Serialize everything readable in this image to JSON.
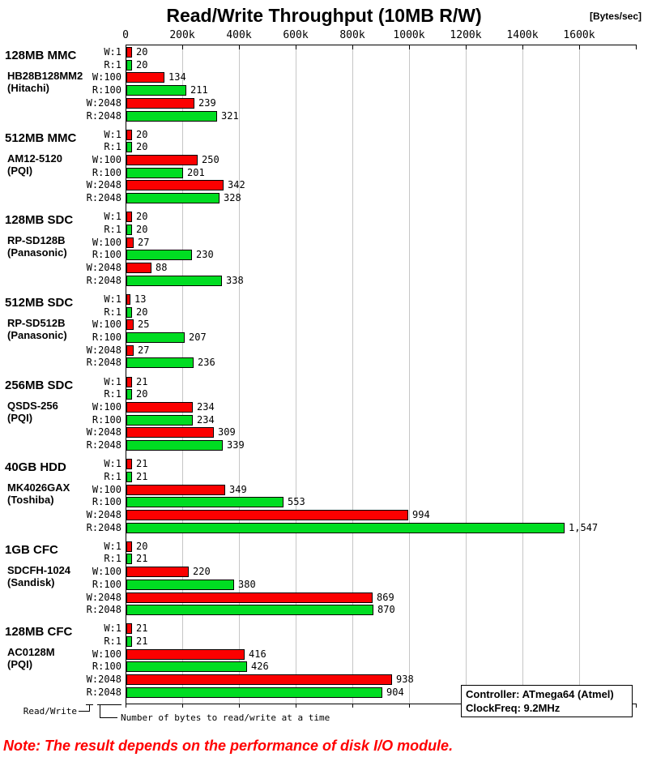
{
  "title": "Read/Write Throughput (10MB R/W)",
  "unit_label": "[Bytes/sec]",
  "note": "Note: The result depends on the performance of disk I/O module.",
  "info_box": {
    "controller": "Controller: ATmega64 (Atmel)",
    "clockfreq": "ClockFreq: 9.2MHz"
  },
  "legend": {
    "read_write": "Read/Write",
    "bytes_at_a_time": "Number of bytes to read/write at a time"
  },
  "chart_data": {
    "type": "bar",
    "orientation": "horizontal",
    "title": "Read/Write Throughput (10MB R/W)",
    "xlabel": "[Bytes/sec]",
    "axis": {
      "tick_labels": [
        "0",
        "200k",
        "400k",
        "600k",
        "800k",
        "1000k",
        "1200k",
        "1400k",
        "1600k"
      ],
      "tick_values_k": [
        0,
        200,
        400,
        600,
        800,
        1000,
        1200,
        1400,
        1600
      ],
      "max_k": 1800,
      "grid": true,
      "position": "top"
    },
    "bar_categories": [
      "W:1",
      "R:1",
      "W:100",
      "R:100",
      "W:2048",
      "R:2048"
    ],
    "colors": {
      "write": "#fb0000",
      "read": "#00dd22"
    },
    "value_unit_note": "bar labels are kBytes/sec",
    "groups": [
      {
        "name": "128MB MMC",
        "model": "HB28B128MM2",
        "maker": "(Hitachi)",
        "values": [
          20,
          20,
          134,
          211,
          239,
          321
        ],
        "labels": [
          "20",
          "20",
          "134",
          "211",
          "239",
          "321"
        ]
      },
      {
        "name": "512MB MMC",
        "model": "AM12-5120",
        "maker": "(PQI)",
        "values": [
          20,
          20,
          250,
          201,
          342,
          328
        ],
        "labels": [
          "20",
          "20",
          "250",
          "201",
          "342",
          "328"
        ]
      },
      {
        "name": "128MB SDC",
        "model": "RP-SD128B",
        "maker": "(Panasonic)",
        "values": [
          20,
          20,
          27,
          230,
          88,
          338
        ],
        "labels": [
          "20",
          "20",
          "27",
          "230",
          "88",
          "338"
        ]
      },
      {
        "name": "512MB SDC",
        "model": "RP-SD512B",
        "maker": "(Panasonic)",
        "values": [
          13,
          20,
          25,
          207,
          27,
          236
        ],
        "labels": [
          "13",
          "20",
          "25",
          "207",
          "27",
          "236"
        ]
      },
      {
        "name": "256MB SDC",
        "model": "QSDS-256",
        "maker": "(PQI)",
        "values": [
          21,
          20,
          234,
          234,
          309,
          339
        ],
        "labels": [
          "21",
          "20",
          "234",
          "234",
          "309",
          "339"
        ]
      },
      {
        "name": "40GB HDD",
        "model": "MK4026GAX",
        "maker": "(Toshiba)",
        "values": [
          21,
          21,
          349,
          553,
          994,
          1547
        ],
        "labels": [
          "21",
          "21",
          "349",
          "553",
          "994",
          "1,547"
        ]
      },
      {
        "name": "1GB CFC",
        "model": "SDCFH-1024",
        "maker": "(Sandisk)",
        "values": [
          20,
          21,
          220,
          380,
          869,
          870
        ],
        "labels": [
          "20",
          "21",
          "220",
          "380",
          "869",
          "870"
        ]
      },
      {
        "name": "128MB CFC",
        "model": "AC0128M",
        "maker": "(PQI)",
        "values": [
          21,
          21,
          416,
          426,
          938,
          904
        ],
        "labels": [
          "21",
          "21",
          "416",
          "426",
          "938",
          "904"
        ]
      }
    ]
  }
}
